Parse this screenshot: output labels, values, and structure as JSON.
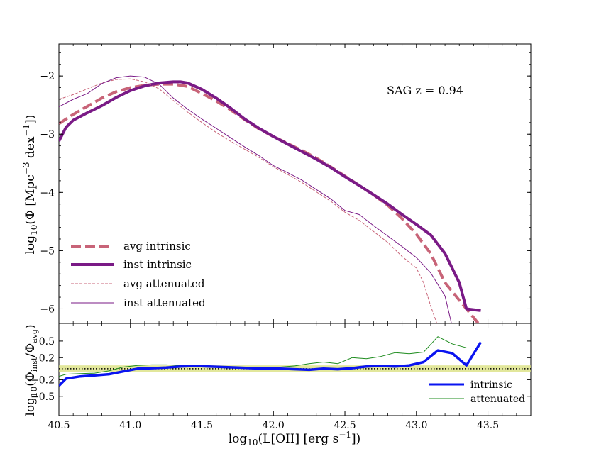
{
  "chart_data": [
    {
      "type": "line",
      "panel": "top",
      "annotation": "SAG z = 0.94",
      "ylabel": "log10(Φ [Mpc^-3 dex^-1])",
      "xlim": [
        40.5,
        43.8
      ],
      "ylim": [
        -6.25,
        -1.45
      ],
      "yticks": [
        -6,
        -5,
        -4,
        -3,
        -2
      ],
      "yticklabels": [
        "−6",
        "−5",
        "−4",
        "−3",
        "−2"
      ],
      "legend_position": "lower-left",
      "series": [
        {
          "name": "avg intrinsic",
          "color": "#c86478",
          "style": "dashed",
          "width": "thick",
          "x": [
            40.5,
            40.6,
            40.7,
            40.8,
            40.9,
            41.0,
            41.1,
            41.2,
            41.3,
            41.4,
            41.5,
            41.6,
            41.7,
            41.8,
            41.9,
            42.0,
            42.1,
            42.2,
            42.3,
            42.4,
            42.5,
            42.6,
            42.7,
            42.8,
            42.9,
            43.0,
            43.1,
            43.2,
            43.3,
            43.4,
            43.45
          ],
          "values": [
            -2.82,
            -2.66,
            -2.52,
            -2.38,
            -2.27,
            -2.2,
            -2.16,
            -2.14,
            -2.14,
            -2.18,
            -2.3,
            -2.43,
            -2.58,
            -2.75,
            -2.91,
            -3.04,
            -3.16,
            -3.28,
            -3.41,
            -3.56,
            -3.72,
            -3.88,
            -4.04,
            -4.22,
            -4.45,
            -4.72,
            -5.05,
            -5.55,
            -5.85,
            -6.15,
            -6.3
          ]
        },
        {
          "name": "inst intrinsic",
          "color": "#7a1a86",
          "style": "solid",
          "width": "thick",
          "x": [
            40.5,
            40.55,
            40.6,
            40.7,
            40.8,
            40.9,
            41.0,
            41.1,
            41.2,
            41.3,
            41.35,
            41.4,
            41.5,
            41.6,
            41.7,
            41.8,
            41.9,
            42.0,
            42.1,
            42.2,
            42.3,
            42.4,
            42.5,
            42.6,
            42.7,
            42.8,
            42.9,
            43.0,
            43.1,
            43.2,
            43.25,
            43.3,
            43.35,
            43.45
          ],
          "values": [
            -3.12,
            -2.88,
            -2.76,
            -2.63,
            -2.51,
            -2.37,
            -2.25,
            -2.17,
            -2.12,
            -2.1,
            -2.1,
            -2.12,
            -2.23,
            -2.38,
            -2.55,
            -2.74,
            -2.9,
            -3.04,
            -3.17,
            -3.3,
            -3.43,
            -3.57,
            -3.73,
            -3.88,
            -4.04,
            -4.2,
            -4.38,
            -4.55,
            -4.73,
            -5.05,
            -5.3,
            -5.55,
            -6.0,
            -6.03
          ]
        },
        {
          "name": "avg attenuated",
          "color": "#c86478",
          "style": "dashed",
          "width": "thin",
          "x": [
            40.5,
            40.6,
            40.7,
            40.8,
            40.9,
            41.0,
            41.1,
            41.2,
            41.3,
            41.4,
            41.5,
            41.6,
            41.7,
            41.8,
            41.9,
            42.0,
            42.1,
            42.2,
            42.3,
            42.4,
            42.5,
            42.6,
            42.7,
            42.8,
            42.9,
            43.0,
            43.05,
            43.1,
            43.15
          ],
          "values": [
            -2.4,
            -2.32,
            -2.22,
            -2.12,
            -2.06,
            -2.05,
            -2.1,
            -2.22,
            -2.42,
            -2.62,
            -2.8,
            -2.97,
            -3.12,
            -3.26,
            -3.4,
            -3.56,
            -3.69,
            -3.83,
            -3.99,
            -4.15,
            -4.34,
            -4.48,
            -4.67,
            -4.86,
            -5.1,
            -5.3,
            -5.55,
            -5.95,
            -6.3
          ]
        },
        {
          "name": "inst attenuated",
          "color": "#7a1a86",
          "style": "solid",
          "width": "thin",
          "x": [
            40.5,
            40.6,
            40.7,
            40.8,
            40.9,
            41.0,
            41.1,
            41.15,
            41.2,
            41.3,
            41.4,
            41.5,
            41.6,
            41.7,
            41.8,
            41.9,
            42.0,
            42.1,
            42.2,
            42.3,
            42.4,
            42.5,
            42.6,
            42.7,
            42.8,
            42.9,
            43.0,
            43.1,
            43.2,
            43.25
          ],
          "values": [
            -2.53,
            -2.4,
            -2.3,
            -2.13,
            -2.03,
            -2.0,
            -2.02,
            -2.08,
            -2.14,
            -2.38,
            -2.57,
            -2.74,
            -2.9,
            -3.06,
            -3.22,
            -3.37,
            -3.54,
            -3.66,
            -3.79,
            -3.95,
            -4.11,
            -4.31,
            -4.38,
            -4.57,
            -4.75,
            -4.93,
            -5.12,
            -5.38,
            -5.78,
            -6.3
          ]
        }
      ]
    },
    {
      "type": "line",
      "panel": "bottom",
      "xlabel": "log10(L[OII] [erg s^-1])",
      "ylabel": "log10(Φ_inst/Φ_avg)",
      "xlim": [
        40.5,
        43.8
      ],
      "ylim": [
        -0.85,
        0.82
      ],
      "xticks": [
        40.5,
        41.0,
        41.5,
        42.0,
        42.5,
        43.0,
        43.5
      ],
      "xticklabels": [
        "40.5",
        "41.0",
        "41.5",
        "42.0",
        "42.5",
        "43.0",
        "43.5"
      ],
      "yticks": [
        -0.5,
        -0.2,
        0.2,
        0.5
      ],
      "yticklabels": [
        "−0.5",
        "−0.2",
        "0.2",
        "0.5"
      ],
      "band": [
        -0.06,
        0.06
      ],
      "band_color": "#d8df7a",
      "reference_line": 0,
      "legend_position": "lower-right",
      "series": [
        {
          "name": "intrinsic",
          "color": "#0a14f0",
          "style": "solid",
          "width": "thick",
          "x": [
            40.5,
            40.55,
            40.65,
            40.75,
            40.85,
            40.95,
            41.05,
            41.15,
            41.25,
            41.35,
            41.45,
            41.55,
            41.65,
            41.75,
            41.85,
            41.95,
            42.05,
            42.15,
            42.25,
            42.35,
            42.45,
            42.55,
            42.65,
            42.75,
            42.85,
            42.95,
            43.05,
            43.15,
            43.25,
            43.35,
            43.45
          ],
          "values": [
            -0.31,
            -0.18,
            -0.14,
            -0.12,
            -0.1,
            -0.05,
            0.0,
            0.01,
            0.02,
            0.04,
            0.05,
            0.04,
            0.03,
            0.02,
            0.01,
            0.0,
            0.0,
            -0.01,
            -0.02,
            0.0,
            -0.01,
            0.01,
            0.04,
            0.05,
            0.04,
            0.06,
            0.12,
            0.33,
            0.28,
            0.06,
            0.48
          ]
        },
        {
          "name": "attenuated",
          "color": "#1e8c1e",
          "style": "solid",
          "width": "thin",
          "x": [
            40.5,
            40.55,
            40.65,
            40.75,
            40.85,
            40.95,
            41.05,
            41.15,
            41.25,
            41.35,
            41.45,
            41.55,
            41.65,
            41.75,
            41.85,
            41.95,
            42.05,
            42.15,
            42.25,
            42.35,
            42.45,
            42.55,
            42.65,
            42.75,
            42.85,
            42.95,
            43.05,
            43.15,
            43.25,
            43.35
          ],
          "values": [
            -0.14,
            -0.1,
            -0.09,
            -0.08,
            -0.04,
            0.03,
            0.06,
            0.07,
            0.07,
            0.06,
            0.05,
            0.04,
            0.04,
            0.03,
            0.02,
            0.02,
            0.03,
            0.05,
            0.09,
            0.12,
            0.09,
            0.2,
            0.18,
            0.22,
            0.29,
            0.27,
            0.3,
            0.58,
            0.45,
            0.38
          ]
        }
      ]
    }
  ]
}
